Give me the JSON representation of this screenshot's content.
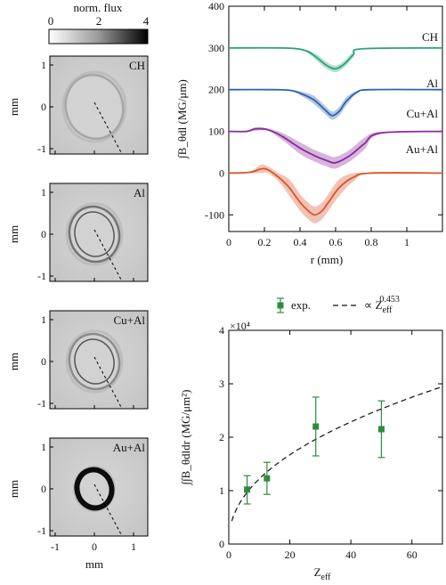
{
  "colorbar": {
    "label": "norm. flux",
    "ticks": [
      "0",
      "2",
      "4"
    ]
  },
  "radiographs": {
    "panels": [
      {
        "label": "CH",
        "ring_scale": 1.0,
        "dark": 0.35
      },
      {
        "label": "Al",
        "ring_scale": 0.85,
        "dark": 0.55
      },
      {
        "label": "Cu+Al",
        "ring_scale": 0.85,
        "dark": 0.45
      },
      {
        "label": "Au+Al",
        "ring_scale": 0.55,
        "dark": 0.95
      }
    ],
    "ylabel": "mm",
    "xlabel": "mm",
    "yticks": [
      "1",
      "0",
      "-1"
    ],
    "xticks": [
      "-1",
      "0",
      "1"
    ]
  },
  "chart_data": [
    {
      "type": "line",
      "xlabel": "r (mm)",
      "ylabel": "∫B_θdl (MG/μm)",
      "xlim": [
        0,
        1.2
      ],
      "ylim": [
        -140,
        400
      ],
      "xticks": [
        "0",
        "0.2",
        "0.4",
        "0.6",
        "0.8",
        "1"
      ],
      "yticks": [
        "400",
        "300",
        "200",
        "100",
        "0",
        "-100"
      ],
      "series": [
        {
          "name": "CH",
          "color": "#2aa37a",
          "offset": 300,
          "x": [
            0,
            0.3,
            0.4,
            0.45,
            0.5,
            0.55,
            0.6,
            0.65,
            0.7,
            0.75,
            1.2
          ],
          "y": [
            300,
            300,
            297,
            290,
            275,
            258,
            250,
            262,
            284,
            298,
            300
          ],
          "band": 8
        },
        {
          "name": "Al",
          "color": "#2b63b0",
          "offset": 200,
          "x": [
            0,
            0.25,
            0.35,
            0.42,
            0.48,
            0.54,
            0.58,
            0.62,
            0.66,
            0.72,
            0.8,
            1.2
          ],
          "y": [
            200,
            200,
            198,
            188,
            175,
            152,
            138,
            148,
            172,
            194,
            200,
            200
          ],
          "band": 10
        },
        {
          "name": "Cu+Al",
          "color": "#8a2a9c",
          "offset": 100,
          "x": [
            0,
            0.1,
            0.15,
            0.22,
            0.3,
            0.4,
            0.48,
            0.55,
            0.6,
            0.68,
            0.76,
            0.85,
            1.2
          ],
          "y": [
            100,
            100,
            106,
            104,
            88,
            60,
            42,
            30,
            25,
            42,
            70,
            96,
            100
          ],
          "band": 14
        },
        {
          "name": "Au+Al",
          "color": "#d9542b",
          "offset": 0,
          "x": [
            0,
            0.12,
            0.18,
            0.22,
            0.28,
            0.34,
            0.4,
            0.44,
            0.48,
            0.52,
            0.56,
            0.62,
            0.7,
            0.8,
            1.2
          ],
          "y": [
            0,
            2,
            10,
            8,
            -10,
            -35,
            -70,
            -88,
            -100,
            -92,
            -70,
            -35,
            -10,
            0,
            0
          ],
          "band": 20
        }
      ]
    },
    {
      "type": "scatter",
      "xlabel": "Z_eff",
      "ylabel": "∫∫B_θdldr (MG/μm²)",
      "yexp": "×10⁴",
      "xlim": [
        0,
        70
      ],
      "ylim": [
        0,
        40000
      ],
      "xticks": [
        "0",
        "20",
        "40",
        "60"
      ],
      "yticks": [
        "4",
        "3",
        "2",
        "1",
        "0"
      ],
      "legend": {
        "exp": "exp.",
        "fit": "∝ Z_eff^0.453"
      },
      "points": [
        {
          "x": 6,
          "y": 10200,
          "err_lo": 7500,
          "err_hi": 12800
        },
        {
          "x": 12.5,
          "y": 12300,
          "err_lo": 9300,
          "err_hi": 15300
        },
        {
          "x": 28.5,
          "y": 22000,
          "err_lo": 16500,
          "err_hi": 27500
        },
        {
          "x": 50,
          "y": 21500,
          "err_lo": 16200,
          "err_hi": 26800
        }
      ],
      "fit": {
        "coef": 4300,
        "exponent": 0.453,
        "x_start": 1,
        "x_end": 70
      },
      "color": "#2e8b3e"
    }
  ]
}
